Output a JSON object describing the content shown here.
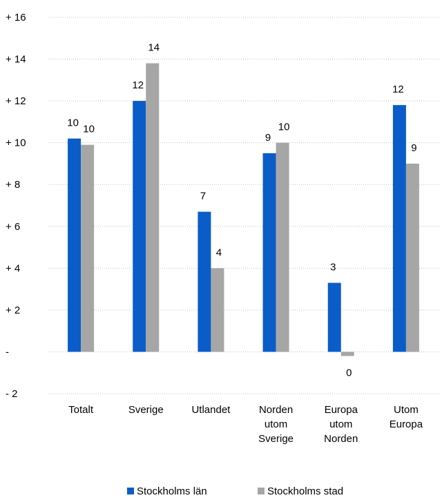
{
  "chart_data": {
    "type": "bar",
    "categories": [
      [
        "Totalt"
      ],
      [
        "Sverige"
      ],
      [
        "Utlandet"
      ],
      [
        "Norden",
        "utom",
        "Sverige"
      ],
      [
        "Europa",
        "utom",
        "Norden"
      ],
      [
        "Utom",
        "Europa"
      ]
    ],
    "series": [
      {
        "name": "Stockholms län",
        "color": "#0A5CC8",
        "values": [
          10.2,
          12.0,
          6.7,
          9.5,
          3.3,
          11.8
        ],
        "labels": [
          "10",
          "12",
          "7",
          "9",
          "3",
          "12"
        ]
      },
      {
        "name": "Stockholms stad",
        "color": "#A6A6A6",
        "values": [
          9.9,
          13.8,
          4.0,
          10.0,
          -0.2,
          9.0
        ],
        "labels": [
          "10",
          "14",
          "4",
          "10",
          "0",
          "9"
        ]
      }
    ],
    "y_ticks": [
      {
        "value": 16,
        "label": "+ 16"
      },
      {
        "value": 14,
        "label": "+ 14"
      },
      {
        "value": 12,
        "label": "+ 12"
      },
      {
        "value": 10,
        "label": "+ 10"
      },
      {
        "value": 8,
        "label": "+ 8"
      },
      {
        "value": 6,
        "label": "+ 6"
      },
      {
        "value": 4,
        "label": "+ 4"
      },
      {
        "value": 2,
        "label": "+ 2"
      },
      {
        "value": 0,
        "label": "-"
      },
      {
        "value": -2,
        "label": "- 2"
      }
    ],
    "ylim": [
      -2,
      16
    ],
    "grid": true,
    "grid_color": "#BFBFBF",
    "legend_position": "bottom",
    "title": "",
    "xlabel": "",
    "ylabel": ""
  }
}
